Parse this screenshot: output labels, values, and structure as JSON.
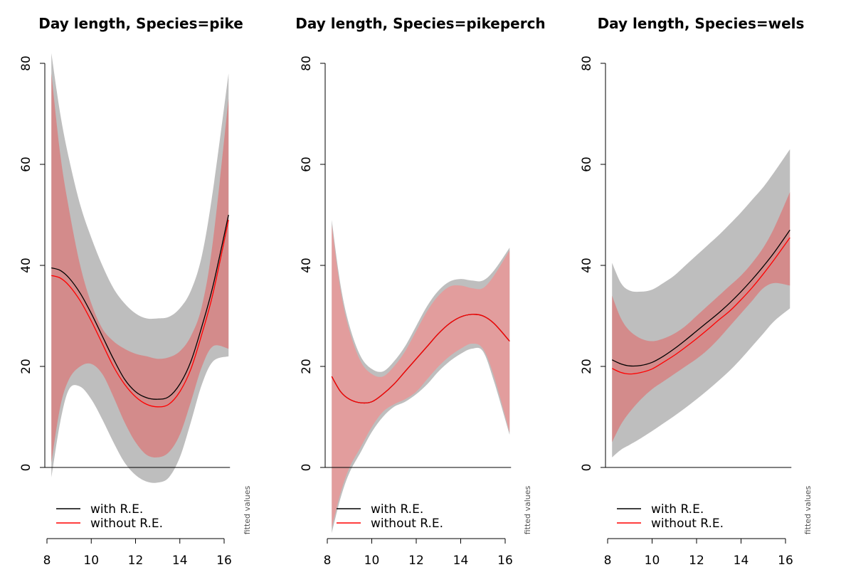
{
  "chart_data": [
    {
      "type": "line",
      "title": "Day length, Species=pike",
      "xlim": [
        8,
        16.2
      ],
      "ylim": [
        0,
        80
      ],
      "x_ticks": [
        8,
        10,
        12,
        14,
        16
      ],
      "y_ticks": [
        0,
        20,
        40,
        60,
        80
      ],
      "x": [
        8.2,
        8.6,
        9.0,
        9.5,
        10.0,
        10.5,
        11.0,
        11.5,
        12.0,
        12.5,
        13.0,
        13.5,
        14.0,
        14.5,
        15.0,
        15.5,
        16.2
      ],
      "series": [
        {
          "name": "with R.E.",
          "color": "#000000",
          "values": [
            39.5,
            39.0,
            37.5,
            34.5,
            30.5,
            26.0,
            21.5,
            17.5,
            15.0,
            13.8,
            13.5,
            14.0,
            16.5,
            21.0,
            28.0,
            36.0,
            50.0
          ],
          "band_lower": [
            -2.0,
            9.0,
            15.5,
            16.0,
            13.5,
            9.5,
            5.0,
            1.0,
            -1.5,
            -2.8,
            -3.0,
            -2.0,
            2.0,
            9.0,
            16.5,
            21.0,
            22.0
          ],
          "band_upper": [
            82.0,
            70.0,
            61.0,
            52.0,
            45.5,
            40.0,
            35.5,
            32.5,
            30.5,
            29.5,
            29.5,
            29.8,
            31.5,
            35.0,
            42.0,
            55.0,
            78.0
          ],
          "band_color": "#bebebe"
        },
        {
          "name": "without R.E.",
          "color": "#ff0000",
          "values": [
            38.0,
            37.5,
            36.0,
            33.0,
            29.0,
            24.5,
            20.0,
            16.5,
            14.0,
            12.5,
            12.0,
            12.5,
            15.0,
            19.5,
            26.5,
            34.5,
            49.0
          ],
          "band_lower": [
            1.0,
            12.0,
            17.5,
            20.0,
            20.5,
            18.5,
            14.0,
            9.0,
            5.0,
            2.5,
            2.0,
            3.0,
            6.5,
            13.0,
            20.0,
            24.0,
            23.5
          ],
          "band_upper": [
            78.0,
            62.0,
            51.0,
            40.0,
            32.5,
            27.5,
            25.0,
            23.5,
            22.5,
            22.0,
            21.5,
            21.8,
            23.0,
            26.0,
            32.0,
            45.0,
            73.0
          ],
          "band_color": "rgba(228,96,96,0.55)"
        }
      ],
      "legend": {
        "position": "bottom-left",
        "entries": [
          "with R.E.",
          "without R.E."
        ]
      },
      "side_note": "fitted values"
    },
    {
      "type": "line",
      "title": "Day length, Species=pikeperch",
      "xlim": [
        8,
        16.2
      ],
      "ylim": [
        0,
        80
      ],
      "x_ticks": [
        8,
        10,
        12,
        14,
        16
      ],
      "y_ticks": [
        0,
        20,
        40,
        60,
        80
      ],
      "x": [
        8.2,
        8.6,
        9.0,
        9.5,
        10.0,
        10.5,
        11.0,
        11.5,
        12.0,
        12.5,
        13.0,
        13.5,
        14.0,
        14.5,
        15.0,
        15.5,
        16.2
      ],
      "series": [
        {
          "name": "with R.E.",
          "color": "#000000",
          "values": [
            18.0,
            15.0,
            13.5,
            12.8,
            13.0,
            14.5,
            16.5,
            19.0,
            21.5,
            24.0,
            26.5,
            28.5,
            29.8,
            30.3,
            30.0,
            28.5,
            25.0
          ],
          "band_lower": [
            -13.0,
            -6.0,
            -1.0,
            3.0,
            7.0,
            10.0,
            12.0,
            13.0,
            14.5,
            16.5,
            19.0,
            21.0,
            22.5,
            23.5,
            23.0,
            17.0,
            6.5
          ],
          "band_upper": [
            49.0,
            36.0,
            28.0,
            22.0,
            19.5,
            19.0,
            21.0,
            24.0,
            28.0,
            32.0,
            35.0,
            36.8,
            37.3,
            37.0,
            37.0,
            39.0,
            43.5
          ],
          "band_color": "#bebebe"
        },
        {
          "name": "without R.E.",
          "color": "#ff0000",
          "values": [
            18.0,
            15.0,
            13.5,
            12.8,
            13.0,
            14.5,
            16.5,
            19.0,
            21.5,
            24.0,
            26.5,
            28.5,
            29.8,
            30.3,
            30.0,
            28.5,
            25.0
          ],
          "band_lower": [
            -12.0,
            -5.0,
            0.0,
            4.0,
            8.0,
            11.0,
            12.5,
            13.5,
            15.0,
            17.5,
            20.0,
            22.0,
            23.5,
            24.5,
            23.5,
            18.0,
            7.0
          ],
          "band_upper": [
            48.0,
            35.0,
            27.0,
            21.0,
            18.5,
            18.0,
            20.0,
            23.0,
            27.0,
            31.0,
            34.0,
            35.8,
            36.0,
            35.5,
            35.5,
            38.0,
            43.0
          ],
          "band_color": "rgba(255,130,130,0.55)"
        }
      ],
      "legend": {
        "position": "bottom-left",
        "entries": [
          "with R.E.",
          "without R.E."
        ]
      },
      "side_note": "fitted values"
    },
    {
      "type": "line",
      "title": "Day length, Species=wels",
      "xlim": [
        8,
        16.2
      ],
      "ylim": [
        0,
        80
      ],
      "x_ticks": [
        8,
        10,
        12,
        14,
        16
      ],
      "y_ticks": [
        0,
        20,
        40,
        60,
        80
      ],
      "x": [
        8.2,
        8.6,
        9.0,
        9.5,
        10.0,
        10.5,
        11.0,
        11.5,
        12.0,
        12.5,
        13.0,
        13.5,
        14.0,
        14.5,
        15.0,
        15.5,
        16.2
      ],
      "series": [
        {
          "name": "with R.E.",
          "color": "#000000",
          "values": [
            21.3,
            20.5,
            20.1,
            20.2,
            20.8,
            22.0,
            23.5,
            25.2,
            27.0,
            28.8,
            30.6,
            32.6,
            34.8,
            37.2,
            39.8,
            42.6,
            47.0
          ],
          "band_lower": [
            2.0,
            3.5,
            4.5,
            5.8,
            7.2,
            8.7,
            10.2,
            11.8,
            13.5,
            15.3,
            17.2,
            19.2,
            21.5,
            24.0,
            26.5,
            29.0,
            31.5
          ],
          "band_upper": [
            40.5,
            36.5,
            35.0,
            34.8,
            35.2,
            36.5,
            38.0,
            40.0,
            42.0,
            44.0,
            46.0,
            48.2,
            50.5,
            53.0,
            55.5,
            58.5,
            63.0
          ],
          "band_color": "#bebebe"
        },
        {
          "name": "without R.E.",
          "color": "#ff0000",
          "values": [
            19.6,
            18.8,
            18.5,
            18.8,
            19.5,
            20.8,
            22.2,
            23.8,
            25.5,
            27.3,
            29.2,
            31.0,
            33.2,
            35.6,
            38.3,
            41.2,
            45.5
          ],
          "band_lower": [
            5.0,
            8.5,
            11.0,
            13.5,
            15.5,
            17.0,
            18.5,
            20.0,
            21.5,
            23.3,
            25.5,
            28.0,
            30.5,
            33.0,
            35.5,
            36.5,
            36.0
          ],
          "band_upper": [
            34.0,
            29.5,
            27.0,
            25.5,
            25.0,
            25.5,
            26.5,
            28.0,
            30.0,
            32.0,
            34.0,
            36.0,
            38.0,
            40.5,
            43.5,
            47.5,
            54.5
          ],
          "band_color": "rgba(228,96,96,0.55)"
        }
      ],
      "legend": {
        "position": "bottom-left",
        "entries": [
          "with R.E.",
          "without R.E."
        ]
      },
      "side_note": "fitted values"
    }
  ]
}
